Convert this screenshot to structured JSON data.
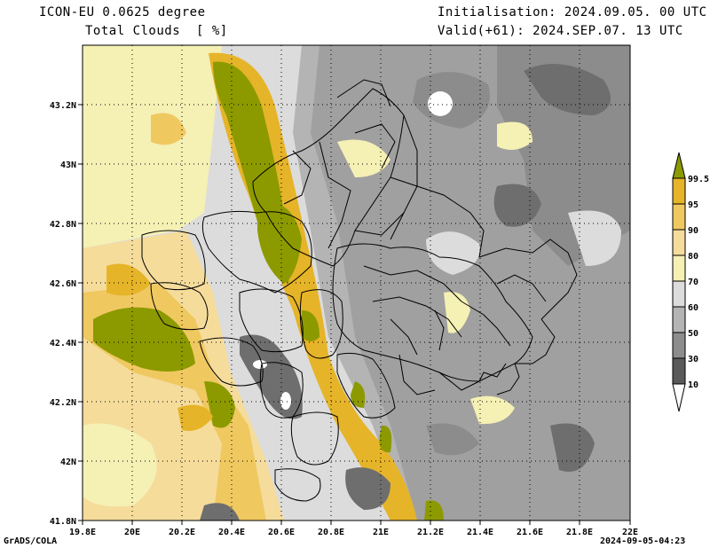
{
  "header": {
    "model": "ICON-EU 0.0625 degree",
    "variable": "Total Clouds  [ %]",
    "initialisation": "Initialisation: 2024.09.05. 00 UTC",
    "valid": "Valid(+61): 2024.SEP.07. 13 UTC"
  },
  "axes": {
    "x_ticks": [
      "19.8E",
      "20E",
      "20.2E",
      "20.4E",
      "20.6E",
      "20.8E",
      "21E",
      "21.2E",
      "21.4E",
      "21.6E",
      "21.8E",
      "22E"
    ],
    "y_ticks": [
      "43.2N",
      "43N",
      "42.8N",
      "42.6N",
      "42.4N",
      "42.2N",
      "42N",
      "41.8N"
    ]
  },
  "colorbar": {
    "levels": [
      "99.5",
      "95",
      "90",
      "80",
      "70",
      "60",
      "50",
      "30",
      "10"
    ],
    "colors": [
      "#8c9a00",
      "#e6b428",
      "#f0c860",
      "#f5dc9b",
      "#f5f0b4",
      "#dcdcdc",
      "#b4b4b4",
      "#8c8c8c",
      "#5a5a5a"
    ]
  },
  "footer": {
    "left": "GrADS/COLA",
    "right": "2024-09-05-04:23"
  }
}
